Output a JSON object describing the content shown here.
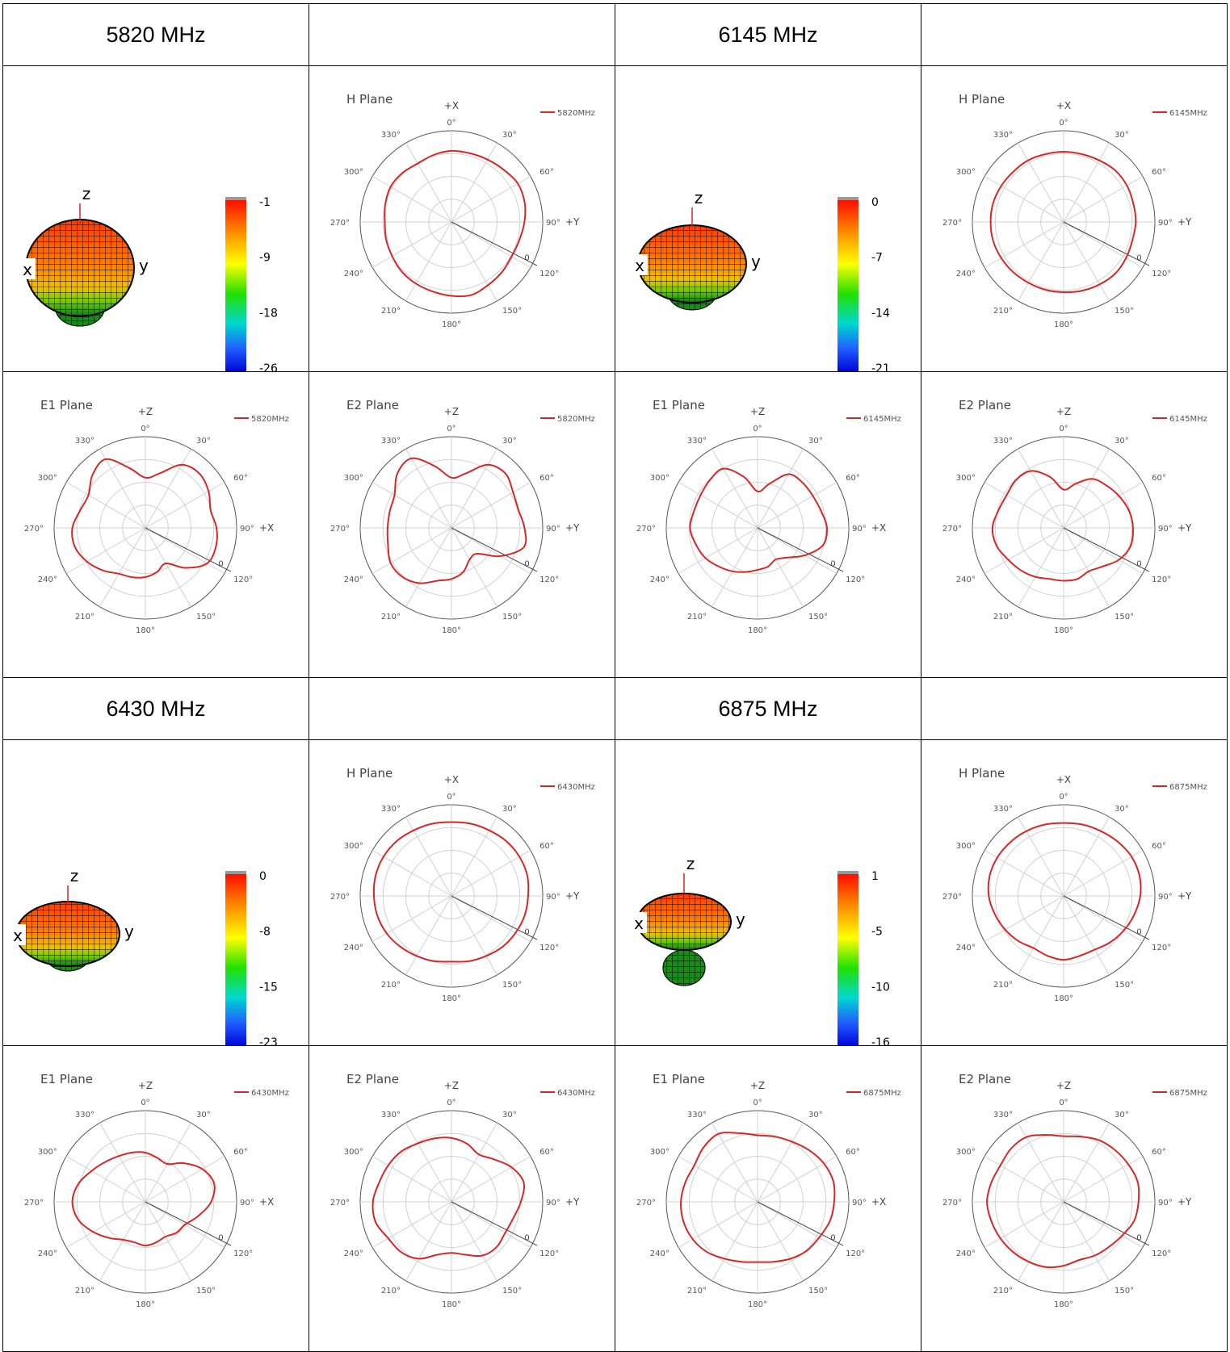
{
  "colors": {
    "trace": "#d62728",
    "grid": "#d0d0d0",
    "ring": "#555555",
    "ref": "#444444",
    "text": "#555555"
  },
  "frequency_headers": [
    "5820 MHz",
    "",
    "6145 MHz",
    "",
    "6430 MHz",
    "",
    "6875 MHz",
    ""
  ],
  "angle_labels": [
    "0°",
    "30°",
    "60°",
    "90°",
    "120°",
    "150°",
    "180°",
    "210°",
    "240°",
    "270°",
    "300°",
    "330°"
  ],
  "ref_label": "0",
  "views_3d": [
    {
      "name": "3d-5820",
      "scale_labels": [
        "-1",
        "-9",
        "-18",
        "-26"
      ],
      "axes": {
        "z": "z",
        "x": "x",
        "y": "y"
      },
      "shape": "tall"
    },
    {
      "name": "3d-6145",
      "scale_labels": [
        "0",
        "-7",
        "-14",
        "-21"
      ],
      "axes": {
        "z": "z",
        "x": "x",
        "y": "y"
      },
      "shape": "round"
    },
    {
      "name": "3d-6430",
      "scale_labels": [
        "0",
        "-8",
        "-15",
        "-23"
      ],
      "axes": {
        "z": "z",
        "x": "x",
        "y": "y"
      },
      "shape": "flat"
    },
    {
      "name": "3d-6875",
      "scale_labels": [
        "1",
        "-5",
        "-10",
        "-16"
      ],
      "axes": {
        "z": "z",
        "x": "x",
        "y": "y"
      },
      "shape": "disc"
    }
  ],
  "chart_data": [
    {
      "type": "polar",
      "title": "H Plane",
      "top_label": "+X",
      "right_label": "+Y",
      "legend": "5820MHz",
      "r": [
        0.78,
        0.78,
        0.79,
        0.81,
        0.84,
        0.83,
        0.8,
        0.77,
        0.76,
        0.78,
        0.8,
        0.83,
        0.81,
        0.79,
        0.78,
        0.77,
        0.75,
        0.74,
        0.73,
        0.75,
        0.77,
        0.76,
        0.74,
        0.76
      ]
    },
    {
      "type": "polar",
      "title": "E1 Plane",
      "top_label": "+Z",
      "right_label": "+X",
      "legend": "5820MHz",
      "r": [
        0.55,
        0.62,
        0.8,
        0.84,
        0.8,
        0.74,
        0.78,
        0.8,
        0.78,
        0.62,
        0.45,
        0.5,
        0.54,
        0.56,
        0.58,
        0.66,
        0.74,
        0.8,
        0.8,
        0.74,
        0.72,
        0.82,
        0.87,
        0.68
      ]
    },
    {
      "type": "polar",
      "title": "E2 Plane",
      "top_label": "+Z",
      "right_label": "+Y",
      "legend": "5820MHz",
      "r": [
        0.55,
        0.62,
        0.8,
        0.84,
        0.78,
        0.76,
        0.8,
        0.82,
        0.62,
        0.4,
        0.4,
        0.5,
        0.56,
        0.6,
        0.7,
        0.76,
        0.77,
        0.72,
        0.7,
        0.7,
        0.72,
        0.84,
        0.88,
        0.7
      ]
    },
    {
      "type": "polar",
      "title": "H Plane",
      "top_label": "+X",
      "right_label": "+Y",
      "legend": "6145MHz",
      "r": [
        0.77,
        0.77,
        0.78,
        0.8,
        0.8,
        0.79,
        0.79,
        0.78,
        0.79,
        0.8,
        0.79,
        0.78,
        0.77,
        0.77,
        0.77,
        0.78,
        0.79,
        0.8,
        0.8,
        0.8,
        0.79,
        0.78,
        0.78,
        0.77
      ]
    },
    {
      "type": "polar",
      "title": "E1 Plane",
      "top_label": "+Z",
      "right_label": "+X",
      "legend": "6145MHz",
      "r": [
        0.4,
        0.5,
        0.68,
        0.7,
        0.7,
        0.72,
        0.76,
        0.74,
        0.6,
        0.46,
        0.4,
        0.44,
        0.46,
        0.5,
        0.55,
        0.6,
        0.66,
        0.7,
        0.74,
        0.72,
        0.72,
        0.74,
        0.75,
        0.58
      ]
    },
    {
      "type": "polar",
      "title": "E2 Plane",
      "top_label": "+Z",
      "right_label": "+Y",
      "legend": "6145MHz",
      "r": [
        0.42,
        0.5,
        0.62,
        0.66,
        0.7,
        0.74,
        0.76,
        0.76,
        0.7,
        0.6,
        0.55,
        0.58,
        0.58,
        0.58,
        0.62,
        0.66,
        0.7,
        0.76,
        0.78,
        0.74,
        0.72,
        0.74,
        0.72,
        0.58
      ]
    },
    {
      "type": "polar",
      "title": "H Plane",
      "top_label": "+X",
      "right_label": "+Y",
      "legend": "6430MHz",
      "r": [
        0.81,
        0.82,
        0.83,
        0.85,
        0.86,
        0.86,
        0.84,
        0.83,
        0.81,
        0.79,
        0.76,
        0.74,
        0.72,
        0.74,
        0.76,
        0.79,
        0.82,
        0.84,
        0.85,
        0.86,
        0.86,
        0.85,
        0.83,
        0.82
      ]
    },
    {
      "type": "polar",
      "title": "E1 Plane",
      "top_label": "+Z",
      "right_label": "+X",
      "legend": "6430MHz",
      "r": [
        0.54,
        0.5,
        0.48,
        0.6,
        0.72,
        0.78,
        0.72,
        0.6,
        0.5,
        0.48,
        0.44,
        0.46,
        0.48,
        0.46,
        0.48,
        0.56,
        0.66,
        0.76,
        0.8,
        0.76,
        0.68,
        0.62,
        0.58,
        0.56
      ]
    },
    {
      "type": "polar",
      "title": "E2 Plane",
      "top_label": "+Z",
      "right_label": "+Y",
      "legend": "6430MHz",
      "r": [
        0.7,
        0.66,
        0.6,
        0.66,
        0.76,
        0.82,
        0.76,
        0.7,
        0.68,
        0.7,
        0.68,
        0.6,
        0.56,
        0.6,
        0.72,
        0.78,
        0.8,
        0.86,
        0.86,
        0.82,
        0.8,
        0.78,
        0.74,
        0.72
      ]
    },
    {
      "type": "polar",
      "title": "H Plane",
      "top_label": "+X",
      "right_label": "+Y",
      "legend": "6875MHz",
      "r": [
        0.8,
        0.81,
        0.82,
        0.84,
        0.86,
        0.86,
        0.84,
        0.8,
        0.76,
        0.72,
        0.68,
        0.68,
        0.7,
        0.68,
        0.66,
        0.7,
        0.74,
        0.78,
        0.82,
        0.84,
        0.84,
        0.83,
        0.82,
        0.81
      ]
    },
    {
      "type": "polar",
      "title": "E1 Plane",
      "top_label": "+Z",
      "right_label": "+X",
      "legend": "6875MHz",
      "r": [
        0.73,
        0.74,
        0.76,
        0.8,
        0.84,
        0.86,
        0.84,
        0.82,
        0.78,
        0.76,
        0.72,
        0.68,
        0.66,
        0.68,
        0.72,
        0.78,
        0.82,
        0.84,
        0.84,
        0.82,
        0.8,
        0.84,
        0.86,
        0.78
      ]
    },
    {
      "type": "polar",
      "title": "E2 Plane",
      "top_label": "+Z",
      "right_label": "+Y",
      "legend": "6875MHz",
      "r": [
        0.72,
        0.74,
        0.78,
        0.8,
        0.82,
        0.84,
        0.82,
        0.8,
        0.74,
        0.7,
        0.68,
        0.66,
        0.7,
        0.74,
        0.76,
        0.78,
        0.8,
        0.82,
        0.84,
        0.82,
        0.8,
        0.82,
        0.82,
        0.76
      ]
    }
  ]
}
